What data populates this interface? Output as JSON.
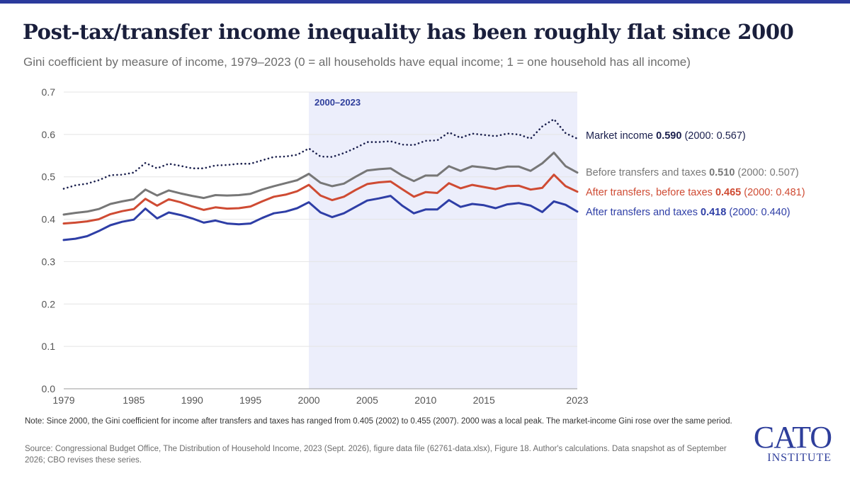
{
  "title": "Post-tax/transfer income inequality has been roughly flat since 2000",
  "subtitle": "Gini coefficient by measure of income, 1979–2023 (0 = all households have equal income; 1 = one household has all income)",
  "note": "Note: Since 2000, the Gini coefficient for income after transfers and taxes has ranged from 0.405 (2002) to 0.455 (2007). 2000 was a local peak. The market-income Gini rose over the same period.",
  "source": "Source: Congressional Budget Office, The Distribution of Household Income, 2023 (Sept. 2026), figure data file (62761-data.xlsx), Figure 18. Author's calculations. Data snapshot as of September 2026; CBO revises these series.",
  "logo": {
    "main": "CATO",
    "sub": "INSTITUTE"
  },
  "colors": {
    "accent_bar": "#2b3a9c",
    "highlight": "#eceefb",
    "highlight_label": "#2e3e9b"
  },
  "chart_data": {
    "type": "line",
    "xlim": [
      1979,
      2023
    ],
    "ylim": [
      0,
      0.7
    ],
    "x_ticks": [
      1979,
      1985,
      1990,
      1995,
      2000,
      2005,
      2010,
      2015,
      2023
    ],
    "y_ticks": [
      0.0,
      0.1,
      0.2,
      0.3,
      0.4,
      0.5,
      0.6,
      0.7
    ],
    "grid": "horizontal",
    "highlight": {
      "from": 2000,
      "to": 2023,
      "label": "2000–2023"
    },
    "x": [
      1979,
      1980,
      1981,
      1982,
      1983,
      1984,
      1985,
      1986,
      1987,
      1988,
      1989,
      1990,
      1991,
      1992,
      1993,
      1994,
      1995,
      1996,
      1997,
      1998,
      1999,
      2000,
      2001,
      2002,
      2003,
      2004,
      2005,
      2006,
      2007,
      2008,
      2009,
      2010,
      2011,
      2012,
      2013,
      2014,
      2015,
      2016,
      2017,
      2018,
      2019,
      2020,
      2021,
      2022,
      2023
    ],
    "series": [
      {
        "name": "Market income",
        "end_value": "0.590",
        "since_2000": "(2000: 0.567)",
        "color": "#1a1f4d",
        "style": "dotted",
        "values": [
          0.472,
          0.48,
          0.484,
          0.492,
          0.504,
          0.505,
          0.51,
          0.533,
          0.52,
          0.531,
          0.526,
          0.52,
          0.52,
          0.527,
          0.528,
          0.531,
          0.531,
          0.539,
          0.547,
          0.548,
          0.552,
          0.567,
          0.548,
          0.547,
          0.556,
          0.568,
          0.582,
          0.582,
          0.584,
          0.576,
          0.575,
          0.585,
          0.586,
          0.605,
          0.592,
          0.602,
          0.599,
          0.596,
          0.602,
          0.6,
          0.59,
          0.619,
          0.636,
          0.603,
          0.59
        ]
      },
      {
        "name": "Before transfers and taxes",
        "end_value": "0.510",
        "since_2000": "(2000: 0.507)",
        "color": "#777777",
        "style": "solid",
        "values": [
          0.411,
          0.415,
          0.418,
          0.424,
          0.436,
          0.442,
          0.447,
          0.47,
          0.456,
          0.468,
          0.461,
          0.455,
          0.45,
          0.457,
          0.456,
          0.457,
          0.46,
          0.47,
          0.478,
          0.485,
          0.492,
          0.507,
          0.486,
          0.478,
          0.484,
          0.5,
          0.515,
          0.518,
          0.52,
          0.503,
          0.49,
          0.503,
          0.503,
          0.525,
          0.514,
          0.525,
          0.522,
          0.518,
          0.524,
          0.524,
          0.514,
          0.532,
          0.557,
          0.525,
          0.51
        ]
      },
      {
        "name": "After transfers, before taxes",
        "end_value": "0.465",
        "since_2000": "(2000: 0.481)",
        "color": "#cf4b33",
        "style": "solid",
        "values": [
          0.39,
          0.392,
          0.395,
          0.4,
          0.412,
          0.419,
          0.424,
          0.448,
          0.432,
          0.447,
          0.44,
          0.43,
          0.422,
          0.428,
          0.425,
          0.426,
          0.43,
          0.442,
          0.453,
          0.458,
          0.466,
          0.481,
          0.456,
          0.445,
          0.453,
          0.469,
          0.483,
          0.487,
          0.489,
          0.471,
          0.453,
          0.464,
          0.462,
          0.485,
          0.473,
          0.481,
          0.476,
          0.471,
          0.478,
          0.479,
          0.47,
          0.474,
          0.505,
          0.478,
          0.465
        ]
      },
      {
        "name": "After transfers and taxes",
        "end_value": "0.418",
        "since_2000": "(2000: 0.440)",
        "color": "#2e3ea6",
        "style": "solid",
        "values": [
          0.351,
          0.354,
          0.36,
          0.372,
          0.386,
          0.394,
          0.399,
          0.425,
          0.402,
          0.416,
          0.41,
          0.402,
          0.392,
          0.397,
          0.39,
          0.388,
          0.39,
          0.403,
          0.414,
          0.418,
          0.426,
          0.44,
          0.416,
          0.405,
          0.414,
          0.429,
          0.444,
          0.449,
          0.455,
          0.432,
          0.414,
          0.423,
          0.423,
          0.445,
          0.429,
          0.436,
          0.433,
          0.426,
          0.435,
          0.438,
          0.432,
          0.417,
          0.442,
          0.434,
          0.418
        ]
      }
    ]
  }
}
